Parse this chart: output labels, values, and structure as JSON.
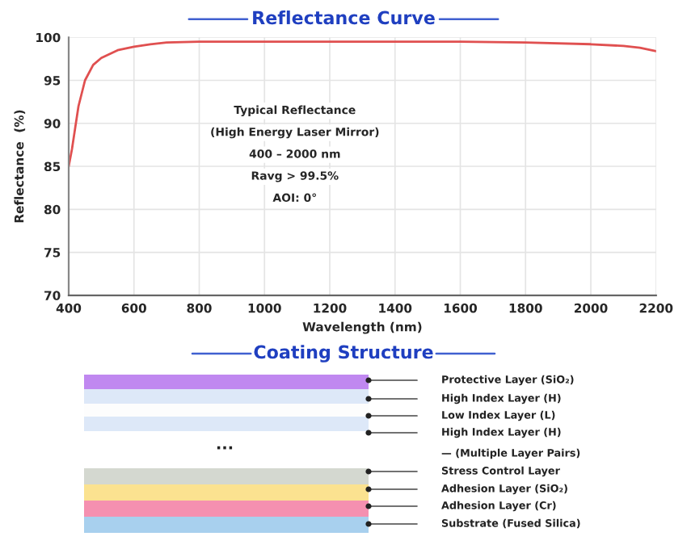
{
  "chart_data": [
    {
      "type": "line",
      "title": "Reflectance Curve",
      "xlabel": "Wavelength (nm)",
      "ylabel": "Reflectance  (%)",
      "x": [
        400,
        410,
        420,
        430,
        450,
        475,
        500,
        550,
        600,
        650,
        700,
        800,
        1000,
        1200,
        1400,
        1600,
        1800,
        2000,
        2100,
        2150,
        2200
      ],
      "series": [
        {
          "color": "#e05050",
          "values": [
            85,
            87,
            89.5,
            92,
            95,
            96.8,
            97.6,
            98.5,
            98.9,
            99.2,
            99.4,
            99.5,
            99.5,
            99.5,
            99.5,
            99.5,
            99.4,
            99.2,
            99.0,
            98.8,
            98.4
          ]
        }
      ],
      "xlim": [
        400,
        2200
      ],
      "ylim": [
        70,
        100
      ],
      "xticks": [
        400,
        600,
        800,
        1000,
        1200,
        1400,
        1600,
        1800,
        2000,
        2200
      ],
      "yticks": [
        70,
        75,
        80,
        85,
        90,
        95,
        100
      ],
      "grid": true,
      "marker": "none",
      "line_style": "solid",
      "legend": false,
      "annotations": [
        "Typical Reflectance",
        "(High Energy Laser Mirror)",
        "400 – 2000 nm",
        "Ravg > 99.5%",
        "AOI: 0°"
      ]
    },
    {
      "type": "other",
      "title": "Coating Structure",
      "annotations": [
        "Protective Layer (SiO₂)",
        "High Index Layer (H)",
        "Low Index Layer (L)",
        "High Index Layer (H)",
        "— (Multiple Layer Pairs)",
        "Stress Control Layer",
        "Adhesion Layer (SiO₂)",
        "Adhesion Layer (Cr)",
        "Substrate (Fused Silica)",
        "···"
      ]
    }
  ]
}
